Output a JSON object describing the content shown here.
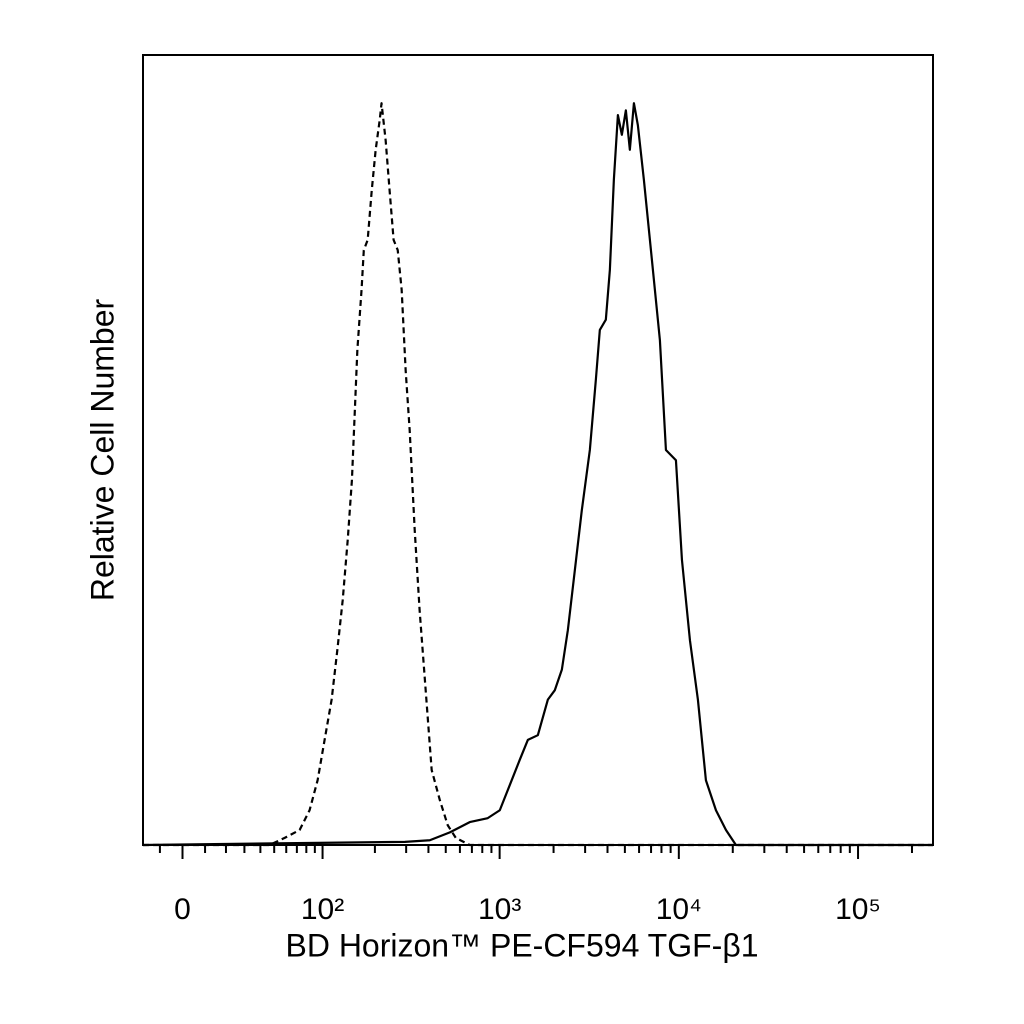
{
  "chart_data": {
    "type": "line",
    "x_label": "BD Horizon™ PE-CF594  TGF-β1",
    "y_label": "Relative Cell Number",
    "xscale": "biexponential",
    "xlim": [
      -18,
      262000
    ],
    "ylim": [
      0,
      100
    ],
    "xticks": [
      0,
      {
        "value": 100,
        "label": "10²"
      },
      {
        "value": 1000,
        "label": "10³"
      },
      {
        "value": 10000,
        "label": "10⁴"
      },
      {
        "value": 100000,
        "label": "10⁵"
      }
    ],
    "xminorticks": [
      -10,
      10,
      20,
      30,
      40,
      50,
      60,
      70,
      80,
      90,
      200,
      300,
      400,
      500,
      600,
      700,
      800,
      900,
      2000,
      3000,
      4000,
      5000,
      6000,
      7000,
      8000,
      9000,
      20000,
      30000,
      40000,
      50000,
      60000,
      70000,
      80000,
      90000,
      200000
    ],
    "series": [
      {
        "color": "#000000",
        "line_style": "dashed",
        "x": [
          -18,
          46.4,
          58.6,
          72.8,
          83.7,
          93.5,
          102.8,
          113,
          122,
          131,
          140,
          148,
          153,
          159,
          168,
          173,
          182,
          192,
          202,
          213,
          218,
          230,
          242,
          255,
          269,
          283,
          298,
          314,
          335,
          357,
          386,
          417,
          463,
          513,
          569,
          681,
          262000
        ],
        "values": [
          0,
          0,
          0.9,
          1.9,
          4.4,
          8.2,
          13.3,
          18.4,
          24.7,
          31.0,
          38.6,
          46.2,
          53.8,
          62.7,
          70.3,
          75.3,
          76.6,
          82.9,
          88.0,
          91.8,
          93.9,
          89.2,
          82.9,
          76.6,
          75.3,
          70.3,
          60.1,
          52.5,
          39.9,
          29.7,
          19.6,
          9.5,
          5.7,
          2.5,
          0.9,
          0,
          0
        ]
      },
      {
        "color": "#000000",
        "line_style": "solid",
        "x": [
          -18,
          295,
          407,
          527,
          681,
          858,
          1002,
          1140,
          1296,
          1437,
          1634,
          1858,
          2033,
          2225,
          2403,
          2629,
          2876,
          3188,
          3444,
          3624,
          3915,
          4123,
          4340,
          4571,
          4809,
          5064,
          5330,
          5615,
          5909,
          6384,
          7074,
          7842,
          8473,
          9636,
          10409,
          11536,
          12777,
          14163,
          16113,
          18326,
          20825,
          262000
        ],
        "values": [
          0,
          0.4,
          0.6,
          1.6,
          2.9,
          3.4,
          4.4,
          7.6,
          10.8,
          13.3,
          13.9,
          18.4,
          19.6,
          22.2,
          27.2,
          34.8,
          42.4,
          50.0,
          58.9,
          65.2,
          66.5,
          72.8,
          84.2,
          92.4,
          89.9,
          93.0,
          88.0,
          93.9,
          91.1,
          84.2,
          74.1,
          63.9,
          50.0,
          48.7,
          36.1,
          25.9,
          18.4,
          8.2,
          4.4,
          1.9,
          0,
          0
        ]
      }
    ]
  }
}
